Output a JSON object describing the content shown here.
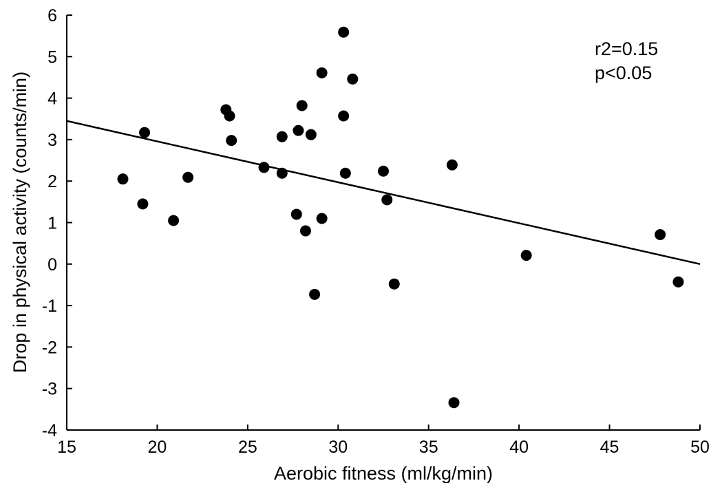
{
  "chart_data": {
    "type": "scatter",
    "title": "",
    "xlabel": "Aerobic fitness (ml/kg/min)",
    "ylabel": "Drop in physical activity (counts/min)",
    "xlim": [
      15,
      50
    ],
    "ylim": [
      -4,
      6
    ],
    "xticks": [
      15,
      20,
      25,
      30,
      35,
      40,
      45,
      50
    ],
    "yticks": [
      -4,
      -3,
      -2,
      -1,
      0,
      1,
      2,
      3,
      4,
      5,
      6
    ],
    "grid": false,
    "annotations": [
      "r2=0.15",
      "p<0.05"
    ],
    "regression_line": {
      "x": [
        15,
        50
      ],
      "y": [
        3.45,
        0.0
      ]
    },
    "points": [
      {
        "x": 18.1,
        "y": 2.05
      },
      {
        "x": 19.2,
        "y": 1.45
      },
      {
        "x": 19.3,
        "y": 3.17
      },
      {
        "x": 20.9,
        "y": 1.05
      },
      {
        "x": 21.7,
        "y": 2.09
      },
      {
        "x": 23.8,
        "y": 3.72
      },
      {
        "x": 24.0,
        "y": 3.57
      },
      {
        "x": 24.1,
        "y": 2.98
      },
      {
        "x": 25.9,
        "y": 2.33
      },
      {
        "x": 26.9,
        "y": 3.07
      },
      {
        "x": 26.9,
        "y": 2.19
      },
      {
        "x": 27.7,
        "y": 1.2
      },
      {
        "x": 27.8,
        "y": 3.22
      },
      {
        "x": 28.0,
        "y": 3.82
      },
      {
        "x": 28.2,
        "y": 0.8
      },
      {
        "x": 28.5,
        "y": 3.12
      },
      {
        "x": 28.7,
        "y": -0.73
      },
      {
        "x": 29.1,
        "y": 4.61
      },
      {
        "x": 29.1,
        "y": 1.1
      },
      {
        "x": 30.3,
        "y": 5.59
      },
      {
        "x": 30.3,
        "y": 3.57
      },
      {
        "x": 30.4,
        "y": 2.19
      },
      {
        "x": 30.8,
        "y": 4.46
      },
      {
        "x": 32.5,
        "y": 2.24
      },
      {
        "x": 32.7,
        "y": 1.55
      },
      {
        "x": 33.1,
        "y": -0.48
      },
      {
        "x": 36.3,
        "y": 2.39
      },
      {
        "x": 36.4,
        "y": -3.34
      },
      {
        "x": 40.4,
        "y": 0.21
      },
      {
        "x": 47.8,
        "y": 0.71
      },
      {
        "x": 48.8,
        "y": -0.43
      }
    ]
  }
}
